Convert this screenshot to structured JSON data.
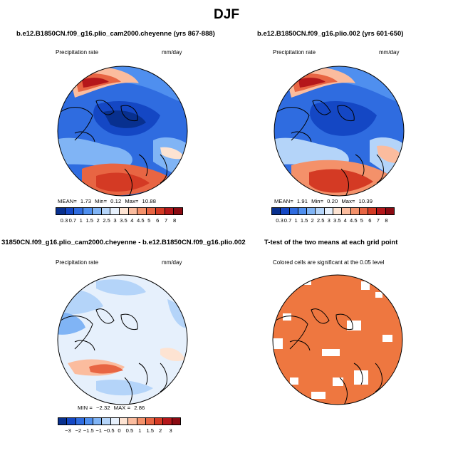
{
  "title": "DJF",
  "panels": [
    {
      "id": "p1",
      "title": "b.e12.B1850CN.f09_g16.plio_cam2000.cheyenne (yrs 867-888)",
      "variable": "Precipitation rate",
      "units": "mm/day",
      "stats": {
        "mean_label": "MEAN=",
        "mean": "1.73",
        "min_label": "Min=",
        "min": "0.12",
        "max_label": "Max=",
        "max": "10.88"
      },
      "colorbar": {
        "colors": [
          "#08308f",
          "#1447c4",
          "#2f6ce0",
          "#4f8fef",
          "#80b4f5",
          "#b4d4f9",
          "#e6f0fc",
          "#fde3d2",
          "#fbbc9e",
          "#f4916a",
          "#e86543",
          "#d43a24",
          "#b5171a",
          "#8b0a12"
        ],
        "labels": [
          "0.3",
          "0.7",
          "1",
          "1.5",
          "2",
          "2.5",
          "3",
          "3.5",
          "4",
          "4.5",
          "5",
          "6",
          "7",
          "8"
        ]
      }
    },
    {
      "id": "p2",
      "title": "b.e12.B1850CN.f09_g16.plio.002 (yrs 601-650)",
      "variable": "Precipitation rate",
      "units": "mm/day",
      "stats": {
        "mean_label": "MEAN=",
        "mean": "1.91",
        "min_label": "Min=",
        "min": "0.20",
        "max_label": "Max=",
        "max": "10.39"
      },
      "colorbar": {
        "colors": [
          "#08308f",
          "#1447c4",
          "#2f6ce0",
          "#4f8fef",
          "#80b4f5",
          "#b4d4f9",
          "#e6f0fc",
          "#fde3d2",
          "#fbbc9e",
          "#f4916a",
          "#e86543",
          "#d43a24",
          "#b5171a",
          "#8b0a12"
        ],
        "labels": [
          "0.3",
          "0.7",
          "1",
          "1.5",
          "2",
          "2.5",
          "3",
          "3.5",
          "4",
          "4.5",
          "5",
          "6",
          "7",
          "8"
        ]
      }
    },
    {
      "id": "p3",
      "title": "31850CN.f09_g16.plio_cam2000.cheyenne - b.e12.B1850CN.f09_g16.plio.002",
      "variable": "Precipitation rate",
      "units": "mm/day",
      "stats": {
        "min_label": "MIN =",
        "min": "−2.32",
        "max_label": "MAX =",
        "max": "2.86"
      },
      "colorbar": {
        "colors": [
          "#08308f",
          "#1447c4",
          "#2f6ce0",
          "#4f8fef",
          "#80b4f5",
          "#b4d4f9",
          "#e6f0fc",
          "#fde3d2",
          "#fbbc9e",
          "#f4916a",
          "#e86543",
          "#d43a24",
          "#b5171a",
          "#8b0a12"
        ],
        "labels": [
          "−3",
          "−2",
          "−1.5",
          "−1",
          "−0.5",
          "0",
          "0.5",
          "1",
          "1.5",
          "2",
          "3"
        ]
      }
    },
    {
      "id": "p4",
      "title": "T-test of the two means at each grid point",
      "subtitle": "Colored cells are significant at the 0.05 level"
    }
  ]
}
